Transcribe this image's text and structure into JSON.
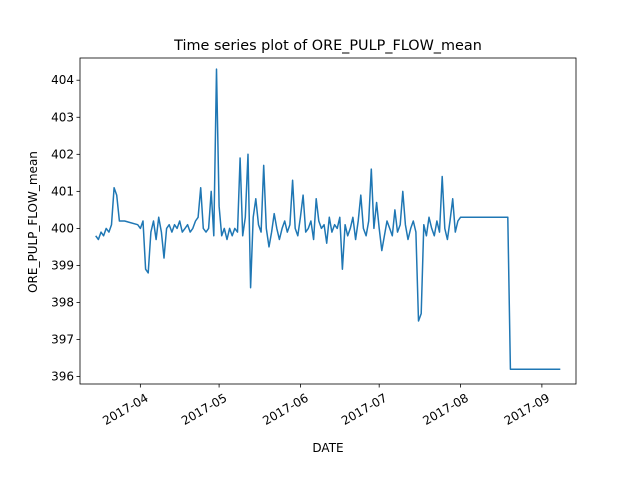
{
  "chart_data": {
    "type": "line",
    "title": "Time series plot of ORE_PULP_FLOW_mean",
    "xlabel": "DATE",
    "ylabel": "ORE_PULP_FLOW_mean",
    "xlim": [
      "2017-03-09",
      "2017-09-14"
    ],
    "ylim": [
      395.8,
      404.6
    ],
    "grid": false,
    "line_color": "#1f77b4",
    "x_ticks": [
      {
        "date": "2017-04-01",
        "label": "2017-04"
      },
      {
        "date": "2017-05-01",
        "label": "2017-05"
      },
      {
        "date": "2017-06-01",
        "label": "2017-06"
      },
      {
        "date": "2017-07-01",
        "label": "2017-07"
      },
      {
        "date": "2017-08-01",
        "label": "2017-08"
      },
      {
        "date": "2017-09-01",
        "label": "2017-09"
      }
    ],
    "y_ticks": [
      396,
      397,
      398,
      399,
      400,
      401,
      402,
      403,
      404
    ],
    "series": [
      {
        "x": [
          "2017-03-15",
          "2017-03-16",
          "2017-03-17",
          "2017-03-18",
          "2017-03-19",
          "2017-03-20",
          "2017-03-21",
          "2017-03-22",
          "2017-03-23",
          "2017-03-24",
          "2017-03-25",
          "2017-03-26",
          "2017-03-31",
          "2017-04-01",
          "2017-04-02",
          "2017-04-03",
          "2017-04-04",
          "2017-04-05",
          "2017-04-06",
          "2017-04-07",
          "2017-04-08",
          "2017-04-09",
          "2017-04-10",
          "2017-04-11",
          "2017-04-12",
          "2017-04-13",
          "2017-04-14",
          "2017-04-15",
          "2017-04-16",
          "2017-04-17",
          "2017-04-18",
          "2017-04-19",
          "2017-04-20",
          "2017-04-21",
          "2017-04-22",
          "2017-04-23",
          "2017-04-24",
          "2017-04-25",
          "2017-04-26",
          "2017-04-27",
          "2017-04-28",
          "2017-04-29",
          "2017-04-30",
          "2017-05-01",
          "2017-05-02",
          "2017-05-03",
          "2017-05-04",
          "2017-05-05",
          "2017-05-06",
          "2017-05-07",
          "2017-05-08",
          "2017-05-09",
          "2017-05-10",
          "2017-05-11",
          "2017-05-12",
          "2017-05-13",
          "2017-05-14",
          "2017-05-15",
          "2017-05-16",
          "2017-05-17",
          "2017-05-18",
          "2017-05-19",
          "2017-05-20",
          "2017-05-21",
          "2017-05-22",
          "2017-05-23",
          "2017-05-24",
          "2017-05-25",
          "2017-05-26",
          "2017-05-27",
          "2017-05-28",
          "2017-05-29",
          "2017-05-30",
          "2017-05-31",
          "2017-06-01",
          "2017-06-02",
          "2017-06-03",
          "2017-06-04",
          "2017-06-05",
          "2017-06-06",
          "2017-06-07",
          "2017-06-08",
          "2017-06-09",
          "2017-06-10",
          "2017-06-11",
          "2017-06-12",
          "2017-06-13",
          "2017-06-14",
          "2017-06-15",
          "2017-06-16",
          "2017-06-17",
          "2017-06-18",
          "2017-06-19",
          "2017-06-20",
          "2017-06-21",
          "2017-06-22",
          "2017-06-23",
          "2017-06-24",
          "2017-06-25",
          "2017-06-26",
          "2017-06-27",
          "2017-06-28",
          "2017-06-29",
          "2017-06-30",
          "2017-07-01",
          "2017-07-02",
          "2017-07-03",
          "2017-07-04",
          "2017-07-05",
          "2017-07-06",
          "2017-07-07",
          "2017-07-08",
          "2017-07-09",
          "2017-07-10",
          "2017-07-11",
          "2017-07-12",
          "2017-07-13",
          "2017-07-14",
          "2017-07-15",
          "2017-07-16",
          "2017-07-17",
          "2017-07-18",
          "2017-07-19",
          "2017-07-20",
          "2017-07-21",
          "2017-07-22",
          "2017-07-23",
          "2017-07-24",
          "2017-07-25",
          "2017-07-26",
          "2017-07-27",
          "2017-07-28",
          "2017-07-29",
          "2017-07-30",
          "2017-07-31",
          "2017-08-01",
          "2017-08-19",
          "2017-08-20",
          "2017-09-08"
        ],
        "y": [
          399.8,
          399.7,
          399.9,
          399.8,
          400.0,
          399.9,
          400.1,
          401.1,
          400.9,
          400.2,
          400.2,
          400.2,
          400.1,
          400.0,
          400.2,
          398.9,
          398.8,
          399.9,
          400.2,
          399.7,
          400.3,
          399.9,
          399.2,
          400.0,
          400.1,
          399.9,
          400.1,
          400.0,
          400.2,
          399.9,
          400.0,
          400.1,
          399.9,
          400.0,
          400.2,
          400.3,
          401.1,
          400.0,
          399.9,
          400.0,
          401.0,
          399.8,
          404.3,
          400.6,
          399.8,
          400.0,
          399.7,
          400.0,
          399.8,
          400.0,
          399.9,
          401.9,
          399.8,
          400.3,
          402.0,
          398.4,
          400.3,
          400.8,
          400.1,
          399.9,
          401.7,
          400.0,
          399.5,
          399.9,
          400.4,
          400.0,
          399.7,
          400.0,
          400.2,
          399.9,
          400.1,
          401.3,
          400.0,
          399.8,
          400.3,
          400.9,
          399.9,
          400.0,
          400.2,
          399.7,
          400.8,
          400.2,
          400.0,
          400.1,
          399.6,
          400.3,
          399.9,
          400.1,
          400.0,
          400.3,
          398.9,
          400.1,
          399.8,
          400.0,
          400.3,
          399.7,
          400.2,
          400.9,
          400.0,
          399.8,
          400.2,
          401.6,
          400.0,
          400.7,
          400.0,
          399.4,
          399.8,
          400.2,
          400.0,
          399.8,
          400.5,
          399.9,
          400.1,
          401.0,
          400.1,
          399.7,
          400.0,
          400.2,
          399.9,
          397.5,
          397.7,
          400.1,
          399.8,
          400.3,
          400.0,
          399.8,
          400.2,
          399.9,
          401.4,
          400.0,
          399.7,
          400.2,
          400.8,
          399.9,
          400.2,
          400.3,
          400.3,
          396.2,
          396.2
        ],
        "label": null
      }
    ]
  }
}
